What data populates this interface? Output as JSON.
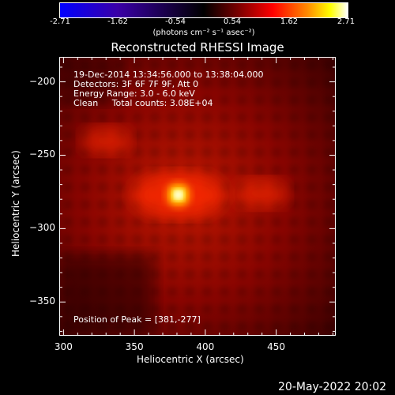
{
  "colorbar": {
    "ticks": [
      "-2.71",
      "-1.62",
      "-0.54",
      "0.54",
      "1.62",
      "2.71"
    ],
    "units": "(photons cm⁻² s⁻¹ asec⁻²)"
  },
  "title": "Reconstructed RHESSI Image",
  "annotations": {
    "line1": "19-Dec-2014 13:34:56.000 to 13:38:04.000",
    "line2": "Detectors: 3F 6F 7F 9F, Att 0",
    "line3": "Energy Range: 3.0 - 6.0 keV",
    "line4": "Clean     Total counts: 3.08E+04",
    "peak": "Position of Peak = [381,-277]"
  },
  "footer_date": "20-May-2022 20:02",
  "chart_data": {
    "type": "heatmap",
    "title": "Reconstructed RHESSI Image",
    "xlabel": "Heliocentric X (arcsec)",
    "ylabel": "Heliocentric Y (arcsec)",
    "xlim": [
      297,
      492
    ],
    "ylim": [
      -373,
      -183
    ],
    "xticks": [
      "300",
      "350",
      "400",
      "450"
    ],
    "yticks": [
      "-200",
      "-250",
      "-300",
      "-350"
    ],
    "colorbar_range": [
      -2.71,
      2.71
    ],
    "peak_position": [
      381,
      -277
    ],
    "sources": [
      {
        "x": 381,
        "y": -277,
        "relative_intensity": 1.0
      },
      {
        "x": 440,
        "y": -276,
        "relative_intensity": 0.35
      },
      {
        "x": 330,
        "y": -240,
        "relative_intensity": 0.3
      }
    ],
    "colormap": [
      "#0000ff",
      "#000000",
      "#ff0000",
      "#ffff00",
      "#ffffff"
    ]
  }
}
